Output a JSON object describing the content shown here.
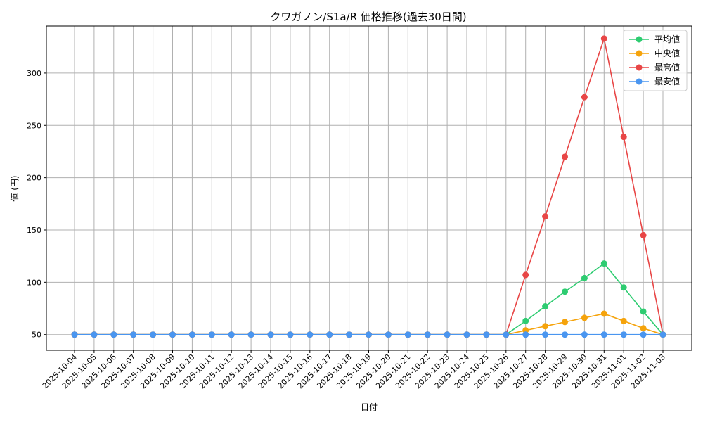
{
  "chart_data": {
    "type": "line",
    "title": "クワガノン/S1a/R 価格推移(過去30日間)",
    "xlabel": "日付",
    "ylabel": "値 (円)",
    "x": [
      "2025-10-04",
      "2025-10-05",
      "2025-10-06",
      "2025-10-07",
      "2025-10-08",
      "2025-10-09",
      "2025-10-10",
      "2025-10-11",
      "2025-10-12",
      "2025-10-13",
      "2025-10-14",
      "2025-10-15",
      "2025-10-16",
      "2025-10-17",
      "2025-10-18",
      "2025-10-19",
      "2025-10-20",
      "2025-10-21",
      "2025-10-22",
      "2025-10-23",
      "2025-10-24",
      "2025-10-25",
      "2025-10-26",
      "2025-10-27",
      "2025-10-28",
      "2025-10-29",
      "2025-10-30",
      "2025-10-31",
      "2025-11-01",
      "2025-11-02",
      "2025-11-03"
    ],
    "ylim": [
      35,
      345
    ],
    "yticks": [
      50,
      100,
      150,
      200,
      250,
      300
    ],
    "grid": true,
    "legend": "top-right",
    "series": [
      {
        "name": "平均値",
        "color": "#2ecc71",
        "values": [
          50,
          50,
          50,
          50,
          50,
          50,
          50,
          50,
          50,
          50,
          50,
          50,
          50,
          50,
          50,
          50,
          50,
          50,
          50,
          50,
          50,
          50,
          50,
          63,
          77,
          91,
          104,
          118,
          95,
          72,
          50
        ]
      },
      {
        "name": "中央値",
        "color": "#f5a30b",
        "values": [
          50,
          50,
          50,
          50,
          50,
          50,
          50,
          50,
          50,
          50,
          50,
          50,
          50,
          50,
          50,
          50,
          50,
          50,
          50,
          50,
          50,
          50,
          50,
          54,
          58,
          62,
          66,
          70,
          63,
          56,
          50
        ]
      },
      {
        "name": "最高値",
        "color": "#e84646",
        "values": [
          50,
          50,
          50,
          50,
          50,
          50,
          50,
          50,
          50,
          50,
          50,
          50,
          50,
          50,
          50,
          50,
          50,
          50,
          50,
          50,
          50,
          50,
          50,
          107,
          163,
          220,
          277,
          333,
          239,
          145,
          50
        ]
      },
      {
        "name": "最安値",
        "color": "#4a96f0",
        "values": [
          50,
          50,
          50,
          50,
          50,
          50,
          50,
          50,
          50,
          50,
          50,
          50,
          50,
          50,
          50,
          50,
          50,
          50,
          50,
          50,
          50,
          50,
          50,
          50,
          50,
          50,
          50,
          50,
          50,
          50,
          50
        ]
      }
    ]
  }
}
